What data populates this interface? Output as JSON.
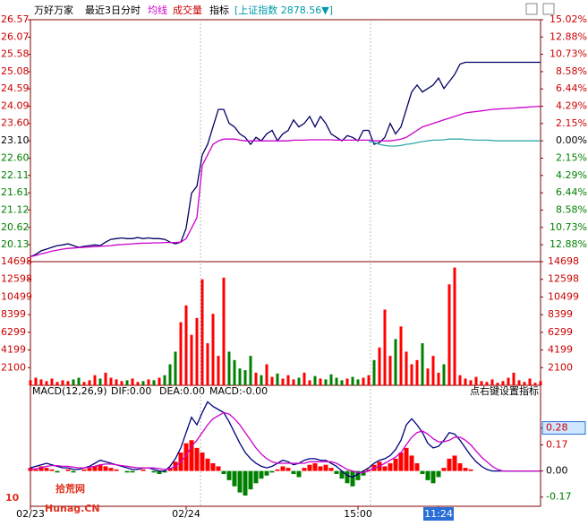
{
  "header": {
    "title": "万好万家",
    "subtitle": "最近3日分时",
    "avg_label": "均线",
    "volume_label": "成交量",
    "indicator_label": "指标",
    "index_box": "[上证指数 2878.56▼]"
  },
  "macd_header": {
    "name": "MACD(12,26,9)",
    "dif": "DIF:0.00",
    "dea": "DEA:0.00",
    "macd": "MACD:-0.00",
    "hint": "点右键设置指标"
  },
  "watermark": {
    "logo": "10",
    "name": "拾荒网",
    "site": "Hunag.CN"
  },
  "chart_data": [
    {
      "type": "line",
      "xlim": [
        0,
        95
      ],
      "xticks": [
        {
          "value": 0,
          "label": "02/23"
        },
        {
          "value": 29,
          "label": "02/24"
        },
        {
          "value": 61,
          "label": "15:00"
        },
        {
          "value": 76,
          "label": "11:24"
        }
      ],
      "ylim": [
        19.64,
        26.57
      ],
      "yticks": [
        26.57,
        26.07,
        25.58,
        25.08,
        24.59,
        24.09,
        {
          "value": 23.6,
          "label": "23.60"
        },
        {
          "value": 23.1,
          "label": "23.10"
        },
        {
          "value": 22.6,
          "label": "22.60"
        },
        22.11,
        21.61,
        21.12,
        20.62,
        20.13
      ],
      "y2lim": [
        -14.98,
        15.02
      ],
      "y2ticks": [
        {
          "value": 15.02,
          "label": "15.02%"
        },
        {
          "value": 12.88,
          "label": "12.88%"
        },
        {
          "value": 10.73,
          "label": "10.73%"
        },
        {
          "value": 8.58,
          "label": "8.58%"
        },
        {
          "value": 6.44,
          "label": "6.44%"
        },
        {
          "value": 4.29,
          "label": "4.29%"
        },
        {
          "value": 2.15,
          "label": "2.15%"
        },
        {
          "value": 0,
          "label": "0.00%"
        },
        {
          "value": -2.15,
          "label": "2.15%"
        },
        {
          "value": -4.29,
          "label": "4.29%"
        },
        {
          "value": -6.44,
          "label": "6.44%"
        },
        {
          "value": -8.58,
          "label": "8.58%"
        },
        {
          "value": -10.73,
          "label": "10.73%"
        },
        {
          "value": -12.88,
          "label": "12.88%"
        }
      ],
      "series": [
        {
          "color": "#000066",
          "values": [
            19.78,
            19.85,
            19.95,
            20.0,
            20.05,
            20.1,
            20.12,
            20.15,
            20.1,
            20.05,
            20.08,
            20.1,
            20.12,
            20.1,
            20.2,
            20.28,
            20.3,
            20.32,
            20.3,
            20.3,
            20.33,
            20.3,
            20.32,
            20.3,
            20.3,
            20.28,
            20.2,
            20.15,
            20.2,
            20.6,
            21.6,
            21.8,
            22.7,
            23.0,
            23.5,
            24.0,
            24.0,
            23.6,
            23.5,
            23.3,
            23.2,
            23.0,
            23.2,
            23.1,
            23.3,
            23.4,
            23.1,
            23.3,
            23.4,
            23.7,
            23.5,
            23.6,
            23.8,
            23.5,
            23.8,
            23.6,
            23.3,
            23.2,
            23.1,
            23.25,
            23.2,
            23.1,
            23.4,
            23.4,
            23.0,
            23.05,
            23.2,
            23.6,
            23.3,
            23.5,
            24.0,
            24.5,
            24.7,
            24.5,
            24.6,
            24.7,
            24.9,
            24.6,
            24.8,
            25.0,
            25.3,
            25.35,
            25.35,
            25.35,
            25.35,
            25.35,
            25.35,
            25.35,
            25.35,
            25.35,
            25.35,
            25.35,
            25.35,
            25.35,
            25.35,
            25.35
          ]
        },
        {
          "color": "#cc00cc",
          "values": [
            19.78,
            19.82,
            19.86,
            19.9,
            19.94,
            19.97,
            20.0,
            20.02,
            20.03,
            20.04,
            20.05,
            20.06,
            20.07,
            20.08,
            20.09,
            20.1,
            20.12,
            20.13,
            20.14,
            20.15,
            20.16,
            20.17,
            20.17,
            20.18,
            20.18,
            20.19,
            20.19,
            20.19,
            20.2,
            20.3,
            20.6,
            20.9,
            22.4,
            22.7,
            23.0,
            23.1,
            23.15,
            23.15,
            23.15,
            23.12,
            23.1,
            23.1,
            23.1,
            23.1,
            23.1,
            23.1,
            23.1,
            23.1,
            23.1,
            23.12,
            23.12,
            23.12,
            23.13,
            23.13,
            23.13,
            23.13,
            23.13,
            23.12,
            23.12,
            23.12,
            23.12,
            23.12,
            23.12,
            23.12,
            23.1,
            23.1,
            23.1,
            23.1,
            23.12,
            23.15,
            23.2,
            23.3,
            23.4,
            23.5,
            23.55,
            23.6,
            23.65,
            23.7,
            23.75,
            23.8,
            23.85,
            23.9,
            23.92,
            23.94,
            23.96,
            23.98,
            24.0,
            24.01,
            24.02,
            24.03,
            24.04,
            24.05,
            24.06,
            24.07,
            24.08,
            24.09
          ]
        },
        {
          "color": "#33aaaa",
          "values": [
            null,
            null,
            null,
            null,
            null,
            null,
            null,
            null,
            null,
            null,
            null,
            null,
            null,
            null,
            null,
            null,
            null,
            null,
            null,
            null,
            null,
            null,
            null,
            null,
            null,
            null,
            null,
            null,
            null,
            null,
            null,
            null,
            null,
            null,
            null,
            null,
            null,
            null,
            null,
            null,
            null,
            null,
            null,
            null,
            null,
            null,
            null,
            null,
            null,
            null,
            null,
            null,
            null,
            null,
            null,
            null,
            null,
            null,
            null,
            null,
            null,
            null,
            null,
            23.1,
            23.05,
            23.0,
            22.97,
            22.95,
            22.95,
            22.97,
            23.0,
            23.02,
            23.05,
            23.08,
            23.1,
            23.12,
            23.12,
            23.13,
            23.15,
            23.15,
            23.15,
            23.14,
            23.13,
            23.12,
            23.12,
            23.12,
            23.11,
            23.1,
            23.1,
            23.1,
            23.1,
            23.1,
            23.1,
            23.1,
            23.1,
            23.1
          ]
        }
      ]
    },
    {
      "type": "bar",
      "up_color": "#ff0000",
      "down_color": "#008000",
      "ylim": [
        0,
        14698
      ],
      "yticks": [
        14698,
        12598,
        10499,
        8399,
        6299,
        4199,
        2100
      ],
      "values": [
        600,
        900,
        700,
        500,
        800,
        400,
        600,
        500,
        700,
        900,
        400,
        600,
        1200,
        800,
        1500,
        900,
        700,
        500,
        600,
        800,
        400,
        500,
        700,
        600,
        900,
        1200,
        2500,
        4000,
        7500,
        9500,
        6000,
        8000,
        12600,
        5000,
        8500,
        3500,
        12800,
        4000,
        3000,
        2000,
        1800,
        3500,
        1500,
        1200,
        2500,
        1000,
        1400,
        800,
        1200,
        700,
        900,
        1500,
        600,
        1100,
        800,
        700,
        1300,
        900,
        600,
        800,
        1000,
        700,
        900,
        1200,
        3000,
        4500,
        9000,
        3500,
        5500,
        7000,
        4000,
        2500,
        3000,
        5000,
        2000,
        3500,
        1500,
        2500,
        12000,
        14000,
        1200,
        800,
        600,
        1000,
        500,
        400,
        700,
        300,
        500,
        900,
        1500,
        600,
        400,
        800,
        300,
        500
      ]
    },
    {
      "type": "macd",
      "up_color": "#ff0000",
      "down_color": "#008000",
      "ylim": [
        -0.23,
        0.47
      ],
      "yticks": [
        0.28,
        0.17,
        {
          "value": 0,
          "label": "0.00"
        },
        -0.17
      ],
      "values": [
        0.02,
        0.01,
        0.03,
        0.02,
        0.01,
        -0.01,
        0.0,
        0.01,
        -0.01,
        0.0,
        0.01,
        0.02,
        0.03,
        0.04,
        0.03,
        0.02,
        0.01,
        0.0,
        -0.01,
        -0.01,
        0.0,
        0.01,
        0.0,
        -0.01,
        -0.02,
        -0.01,
        0.02,
        0.06,
        0.12,
        0.18,
        0.2,
        0.15,
        0.12,
        0.08,
        0.05,
        0.03,
        -0.02,
        -0.06,
        -0.1,
        -0.14,
        -0.16,
        -0.12,
        -0.08,
        -0.05,
        -0.03,
        -0.01,
        0.01,
        0.03,
        0.02,
        -0.02,
        -0.04,
        0.02,
        0.04,
        0.05,
        0.03,
        0.04,
        0.02,
        -0.02,
        -0.05,
        -0.08,
        -0.1,
        -0.06,
        -0.03,
        0.01,
        0.04,
        0.06,
        0.03,
        0.05,
        0.08,
        0.12,
        0.15,
        0.1,
        0.05,
        -0.02,
        -0.06,
        -0.08,
        -0.04,
        0.02,
        0.08,
        0.1,
        0.05,
        0.02,
        0.01,
        0,
        0,
        0,
        0,
        0,
        0,
        0,
        0,
        0,
        0,
        0,
        0,
        0
      ],
      "series": [
        {
          "color": "#000080",
          "values": [
            0.02,
            0.03,
            0.04,
            0.05,
            0.04,
            0.03,
            0.02,
            0.02,
            0.01,
            0.01,
            0.02,
            0.03,
            0.05,
            0.07,
            0.06,
            0.05,
            0.04,
            0.03,
            0.02,
            0.01,
            0.01,
            0.02,
            0.02,
            0.01,
            0,
            0,
            0.03,
            0.08,
            0.15,
            0.25,
            0.35,
            0.3,
            0.38,
            0.45,
            0.42,
            0.4,
            0.38,
            0.32,
            0.25,
            0.18,
            0.12,
            0.08,
            0.05,
            0.03,
            0.02,
            0.03,
            0.05,
            0.07,
            0.06,
            0.04,
            0.05,
            0.07,
            0.08,
            0.08,
            0.07,
            0.07,
            0.05,
            0.03,
            0,
            -0.03,
            -0.04,
            -0.02,
            0,
            0.02,
            0.05,
            0.07,
            0.08,
            0.1,
            0.14,
            0.2,
            0.3,
            0.34,
            0.3,
            0.25,
            0.18,
            0.15,
            0.16,
            0.2,
            0.25,
            0.24,
            0.2,
            0.15,
            0.1,
            0.06,
            0.03,
            0.01,
            0,
            0,
            0,
            0,
            0,
            0,
            0,
            0,
            0,
            0
          ]
        },
        {
          "color": "#cc00cc",
          "values": [
            0.01,
            0.015,
            0.02,
            0.03,
            0.035,
            0.035,
            0.03,
            0.03,
            0.025,
            0.02,
            0.02,
            0.025,
            0.03,
            0.04,
            0.045,
            0.045,
            0.04,
            0.035,
            0.03,
            0.025,
            0.02,
            0.02,
            0.02,
            0.02,
            0.015,
            0.01,
            0.015,
            0.03,
            0.06,
            0.1,
            0.16,
            0.2,
            0.25,
            0.3,
            0.34,
            0.36,
            0.38,
            0.37,
            0.34,
            0.3,
            0.25,
            0.2,
            0.15,
            0.11,
            0.08,
            0.06,
            0.05,
            0.05,
            0.05,
            0.05,
            0.05,
            0.05,
            0.06,
            0.06,
            0.06,
            0.06,
            0.06,
            0.05,
            0.03,
            0.01,
            0,
            -0.01,
            -0.01,
            0,
            0.02,
            0.03,
            0.05,
            0.07,
            0.09,
            0.12,
            0.17,
            0.22,
            0.25,
            0.26,
            0.24,
            0.21,
            0.19,
            0.19,
            0.2,
            0.22,
            0.22,
            0.2,
            0.17,
            0.13,
            0.09,
            0.06,
            0.03,
            0.01,
            0,
            0,
            0,
            0,
            0,
            0,
            0,
            0
          ]
        }
      ]
    }
  ]
}
